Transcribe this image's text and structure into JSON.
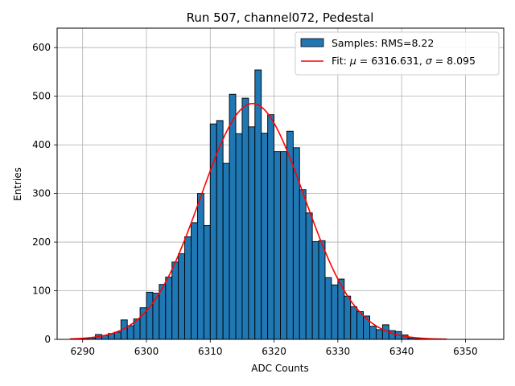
{
  "chart_data": {
    "type": "bar",
    "title": "Run 507, channel072, Pedestal",
    "xlabel": "ADC Counts",
    "ylabel": "Entries",
    "xlim": [
      6286,
      6356
    ],
    "ylim": [
      0,
      640
    ],
    "grid": true,
    "legend_position": "top-right",
    "xticks": [
      6290,
      6300,
      6310,
      6320,
      6330,
      6340,
      6350
    ],
    "yticks": [
      0,
      100,
      200,
      300,
      400,
      500,
      600
    ],
    "bin_width": 1,
    "histogram": {
      "name": "Samples: RMS=8.22",
      "color": "#1f77b4",
      "edgecolor": "#000000",
      "bins": [
        6289,
        6290,
        6291,
        6292,
        6293,
        6294,
        6295,
        6296,
        6297,
        6298,
        6299,
        6300,
        6301,
        6302,
        6303,
        6304,
        6305,
        6306,
        6307,
        6308,
        6309,
        6310,
        6311,
        6312,
        6313,
        6314,
        6315,
        6316,
        6317,
        6318,
        6319,
        6320,
        6321,
        6322,
        6323,
        6324,
        6325,
        6326,
        6327,
        6328,
        6329,
        6330,
        6331,
        6332,
        6333,
        6334,
        6335,
        6336,
        6337,
        6338,
        6339,
        6340,
        6341,
        6342,
        6343,
        6344,
        6345,
        6346
      ],
      "values": [
        1,
        1,
        3,
        10,
        8,
        12,
        15,
        40,
        28,
        42,
        65,
        97,
        95,
        113,
        128,
        159,
        176,
        211,
        240,
        300,
        234,
        443,
        450,
        362,
        504,
        423,
        496,
        437,
        554,
        424,
        462,
        386,
        386,
        428,
        394,
        308,
        260,
        201,
        203,
        127,
        112,
        124,
        89,
        67,
        57,
        48,
        27,
        20,
        30,
        18,
        16,
        9,
        3,
        1,
        1,
        1,
        1,
        1
      ]
    },
    "fit": {
      "name_prefix": "Fit: ",
      "mu_symbol": "μ",
      "mu_text": " = 6316.631, ",
      "sigma_symbol": "σ",
      "sigma_text": " = 8.095",
      "color": "#ff0000",
      "mu": 6316.631,
      "sigma": 8.095,
      "amplitude": 485,
      "x_range": [
        6288,
        6347
      ]
    }
  }
}
